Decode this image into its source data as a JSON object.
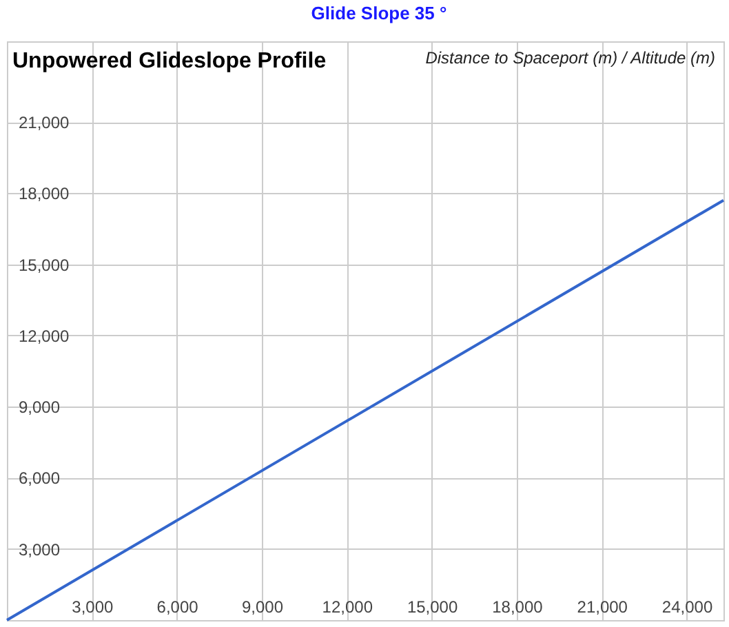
{
  "chart_data": {
    "type": "line",
    "title": "Unpowered Glideslope Profile",
    "annotations": [
      "Glide Slope      35 °",
      "Distance to Spaceport (m) / Altitude (m)"
    ],
    "x": [
      0,
      25300
    ],
    "series": [
      {
        "color": "#3366cc",
        "values": [
          0,
          17700
        ]
      }
    ],
    "xlim": [
      0,
      25300
    ],
    "ylim": [
      0,
      24400
    ],
    "xticks": [
      {
        "value": 3000,
        "label": "3,000"
      },
      {
        "value": 6000,
        "label": "6,000"
      },
      {
        "value": 9000,
        "label": "9,000"
      },
      {
        "value": 12000,
        "label": "12,000"
      },
      {
        "value": 15000,
        "label": "15,000"
      },
      {
        "value": 18000,
        "label": "18,000"
      },
      {
        "value": 21000,
        "label": "21,000"
      },
      {
        "value": 24000,
        "label": "24,000"
      }
    ],
    "yticks": [
      {
        "value": 3000,
        "label": "3,000"
      },
      {
        "value": 6000,
        "label": "6,000"
      },
      {
        "value": 9000,
        "label": "9,000"
      },
      {
        "value": 12000,
        "label": "12,000"
      },
      {
        "value": 15000,
        "label": "15,000"
      },
      {
        "value": 18000,
        "label": "18,000"
      },
      {
        "value": 21000,
        "label": "21,000"
      }
    ],
    "grid": true
  }
}
